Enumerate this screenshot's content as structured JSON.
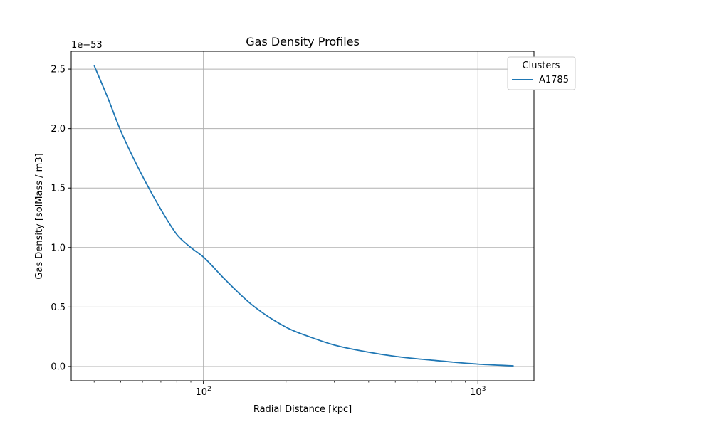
{
  "chart_data": {
    "type": "line",
    "title": "Gas Density Profiles",
    "xlabel": "Radial Distance [kpc]",
    "ylabel": "Gas Density [solMass / m3]",
    "offset_text": "1e−53",
    "x_scale": "log",
    "xlim": [
      33,
      1600
    ],
    "ylim": [
      -0.12,
      2.65
    ],
    "x_ticks": [
      {
        "value": 100,
        "base": "10",
        "exp": "2"
      },
      {
        "value": 1000,
        "base": "10",
        "exp": "3"
      }
    ],
    "y_ticks": [
      {
        "value": 0.0,
        "label": "0.0"
      },
      {
        "value": 0.5,
        "label": "0.5"
      },
      {
        "value": 1.0,
        "label": "1.0"
      },
      {
        "value": 1.5,
        "label": "1.5"
      },
      {
        "value": 2.0,
        "label": "2.0"
      },
      {
        "value": 2.5,
        "label": "2.5"
      }
    ],
    "grid": true,
    "legend": {
      "title": "Clusters",
      "position": "top-right, outside"
    },
    "series": [
      {
        "name": "A1785",
        "color": "#1f77b4",
        "x": [
          40,
          45,
          50,
          60,
          70,
          80,
          90,
          100,
          120,
          150,
          200,
          250,
          300,
          400,
          500,
          700,
          1000,
          1350
        ],
        "y": [
          2.53,
          2.25,
          1.98,
          1.6,
          1.32,
          1.11,
          1.0,
          0.92,
          0.73,
          0.52,
          0.33,
          0.24,
          0.18,
          0.12,
          0.085,
          0.05,
          0.02,
          0.005
        ]
      }
    ]
  }
}
